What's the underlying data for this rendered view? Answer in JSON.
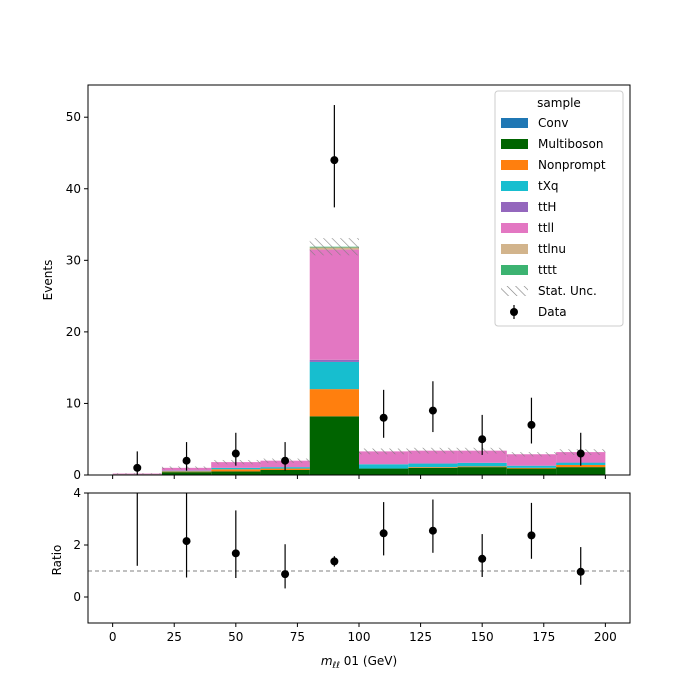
{
  "chart_data": {
    "type": "bar",
    "stacked": true,
    "bin_edges": [
      0,
      20,
      40,
      60,
      80,
      100,
      120,
      140,
      160,
      180,
      200
    ],
    "bin_centers": [
      10,
      30,
      50,
      70,
      90,
      110,
      130,
      150,
      170,
      190
    ],
    "xlabel": "m_ℓℓ 01 (GeV)",
    "xlabel_main": "m",
    "xlabel_sub": "ℓℓ",
    "xlabel_rest": " 01 (GeV)",
    "xlim": [
      -10,
      210
    ],
    "x_ticks": [
      0,
      25,
      50,
      75,
      100,
      125,
      150,
      175,
      200
    ],
    "main": {
      "ylabel": "Events",
      "ylim": [
        0,
        54.5
      ],
      "y_ticks": [
        0,
        10,
        20,
        30,
        40,
        50
      ],
      "series": [
        {
          "name": "Multiboson",
          "color": "#006400",
          "values": [
            0.1,
            0.4,
            0.5,
            0.7,
            8.2,
            0.9,
            1.0,
            1.1,
            0.9,
            1.1
          ]
        },
        {
          "name": "Nonprompt",
          "color": "#ff7f0e",
          "values": [
            0.0,
            0.1,
            0.3,
            0.2,
            3.8,
            0.0,
            0.1,
            0.1,
            0.1,
            0.3
          ]
        },
        {
          "name": "tXq",
          "color": "#17becf",
          "values": [
            0.0,
            0.1,
            0.2,
            0.2,
            3.8,
            0.6,
            0.5,
            0.5,
            0.3,
            0.3
          ]
        },
        {
          "name": "ttH",
          "color": "#9467bd",
          "values": [
            0.0,
            0.0,
            0.0,
            0.0,
            0.3,
            0.0,
            0.0,
            0.0,
            0.0,
            0.1
          ]
        },
        {
          "name": "ttll",
          "color": "#e377c2",
          "values": [
            0.1,
            0.4,
            0.8,
            0.9,
            15.4,
            1.8,
            1.8,
            1.7,
            1.6,
            1.4
          ]
        },
        {
          "name": "ttlnu",
          "color": "#d2b48c",
          "values": [
            0.0,
            0.0,
            0.0,
            0.0,
            0.3,
            0.0,
            0.0,
            0.0,
            0.0,
            0.0
          ]
        },
        {
          "name": "tttt",
          "color": "#3cb371",
          "values": [
            0.0,
            0.0,
            0.0,
            0.0,
            0.1,
            0.0,
            0.0,
            0.0,
            0.0,
            0.0
          ]
        },
        {
          "name": "Conv",
          "color": "#1f77b4",
          "values": [
            0.0,
            0.0,
            0.0,
            0.0,
            0.0,
            0.0,
            0.0,
            0.0,
            0.0,
            0.0
          ]
        }
      ],
      "stat_unc": [
        0.05,
        0.2,
        0.3,
        0.3,
        1.2,
        0.4,
        0.4,
        0.4,
        0.3,
        0.4
      ],
      "data": {
        "name": "Data",
        "values": [
          1,
          2,
          3,
          2,
          44,
          8,
          9,
          5,
          7,
          3
        ],
        "err_low": [
          1.0,
          1.4,
          1.7,
          1.4,
          6.6,
          2.8,
          3.0,
          2.2,
          2.6,
          1.7
        ],
        "err_high": [
          2.3,
          2.6,
          2.9,
          2.6,
          7.7,
          3.9,
          4.1,
          3.4,
          3.8,
          2.9
        ]
      }
    },
    "ratio": {
      "ylabel": "Ratio",
      "ylim": [
        -1,
        4
      ],
      "y_ticks": [
        0,
        2,
        4
      ],
      "reference": 1,
      "values": [
        4.2,
        2.15,
        1.68,
        0.88,
        1.37,
        2.45,
        2.55,
        1.47,
        2.37,
        0.97
      ],
      "err_low": [
        3.0,
        1.4,
        0.95,
        0.55,
        0.2,
        0.85,
        0.85,
        0.7,
        0.9,
        0.5
      ],
      "err_high": [
        4.5,
        1.85,
        1.65,
        1.15,
        0.2,
        1.2,
        1.2,
        0.95,
        1.25,
        0.95
      ]
    },
    "legend": {
      "title": "sample",
      "position": "top-right",
      "entries": [
        {
          "label": "Conv",
          "kind": "patch",
          "color": "#1f77b4"
        },
        {
          "label": "Multiboson",
          "kind": "patch",
          "color": "#006400"
        },
        {
          "label": "Nonprompt",
          "kind": "patch",
          "color": "#ff7f0e"
        },
        {
          "label": "tXq",
          "kind": "patch",
          "color": "#17becf"
        },
        {
          "label": "ttH",
          "kind": "patch",
          "color": "#9467bd"
        },
        {
          "label": "ttll",
          "kind": "patch",
          "color": "#e377c2"
        },
        {
          "label": "ttlnu",
          "kind": "patch",
          "color": "#d2b48c"
        },
        {
          "label": "tttt",
          "kind": "patch",
          "color": "#3cb371"
        },
        {
          "label": "Stat. Unc.",
          "kind": "hatch",
          "color": "#808080"
        },
        {
          "label": "Data",
          "kind": "errorbar",
          "color": "#000000"
        }
      ]
    }
  }
}
